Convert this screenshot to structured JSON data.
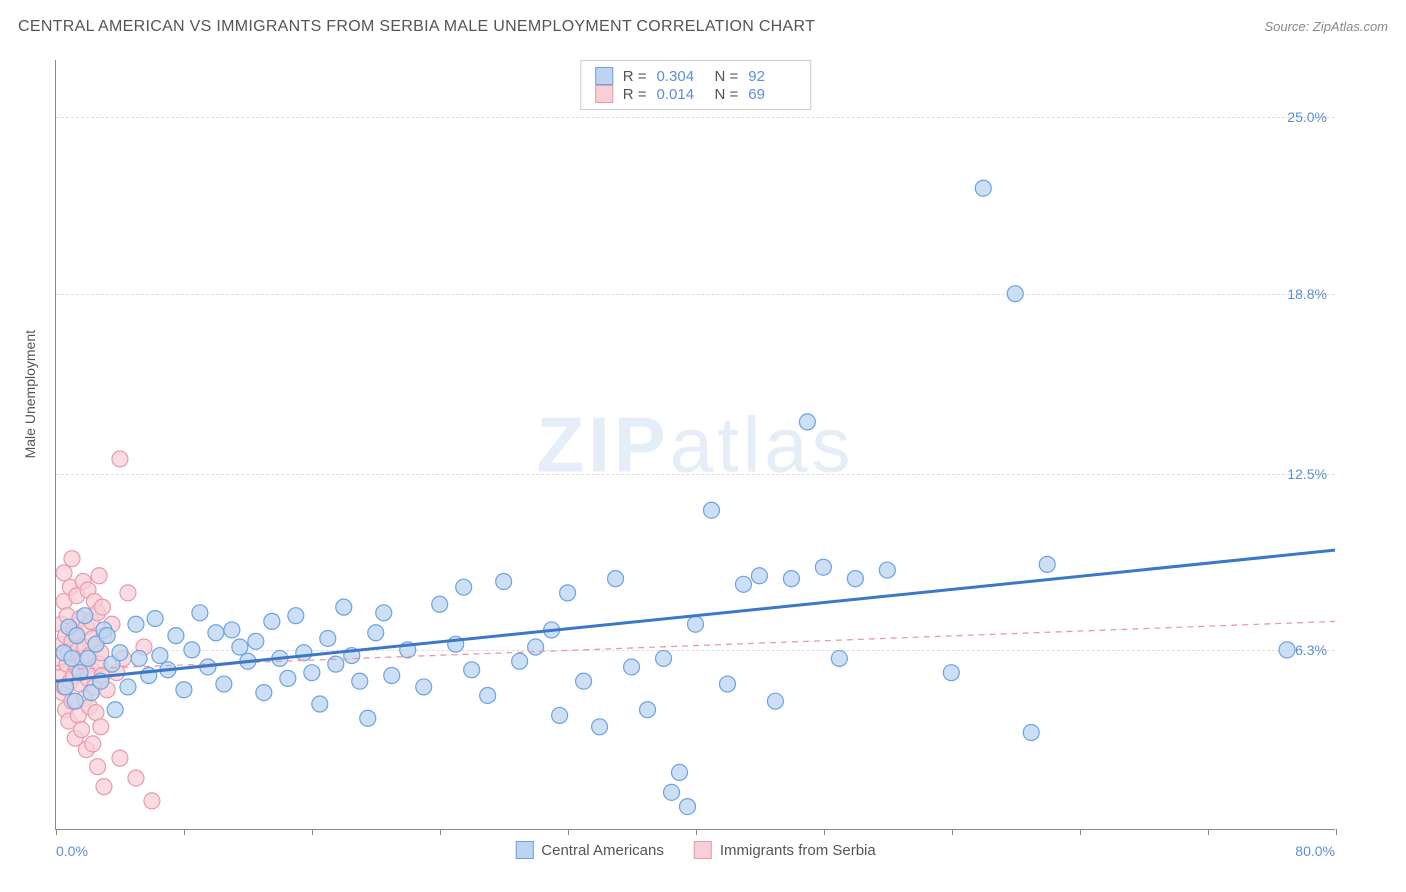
{
  "title": "CENTRAL AMERICAN VS IMMIGRANTS FROM SERBIA MALE UNEMPLOYMENT CORRELATION CHART",
  "source_label": "Source: ZipAtlas.com",
  "watermark": {
    "bold": "ZIP",
    "light": "atlas"
  },
  "ylabel": "Male Unemployment",
  "chart": {
    "type": "scatter",
    "xlim": [
      0,
      80
    ],
    "ylim": [
      0,
      27
    ],
    "xtick_label_min": "0.0%",
    "xtick_label_max": "80.0%",
    "xtick_positions": [
      0,
      8,
      16,
      24,
      32,
      40,
      48,
      56,
      64,
      72,
      80
    ],
    "ytick_labels": [
      "6.3%",
      "12.5%",
      "18.8%",
      "25.0%"
    ],
    "ytick_values": [
      6.3,
      12.5,
      18.8,
      25.0
    ],
    "grid_color": "#dddddd",
    "axis_color": "#888888",
    "background_color": "#ffffff",
    "marker_radius": 8,
    "marker_stroke_width": 1.2,
    "trend_line_width_solid": 3,
    "trend_line_width_dashed": 1.3,
    "series": [
      {
        "key": "central_americans",
        "label": "Central Americans",
        "R": "0.304",
        "N": "92",
        "fill": "#bcd4f0",
        "stroke": "#6ca3e0",
        "trend": {
          "style": "solid",
          "color": "#3b78c9",
          "y_at_xmin": 5.2,
          "y_at_xmax": 9.8
        },
        "points": [
          [
            0.5,
            6.2
          ],
          [
            0.6,
            5.0
          ],
          [
            0.8,
            7.1
          ],
          [
            1.0,
            6.0
          ],
          [
            1.2,
            4.5
          ],
          [
            1.3,
            6.8
          ],
          [
            1.5,
            5.5
          ],
          [
            1.8,
            7.5
          ],
          [
            2.0,
            6.0
          ],
          [
            2.2,
            4.8
          ],
          [
            2.5,
            6.5
          ],
          [
            2.8,
            5.2
          ],
          [
            3.0,
            7.0
          ],
          [
            3.2,
            6.8
          ],
          [
            3.5,
            5.8
          ],
          [
            3.7,
            4.2
          ],
          [
            4.0,
            6.2
          ],
          [
            4.5,
            5.0
          ],
          [
            5.0,
            7.2
          ],
          [
            5.2,
            6.0
          ],
          [
            5.8,
            5.4
          ],
          [
            6.2,
            7.4
          ],
          [
            6.5,
            6.1
          ],
          [
            7.0,
            5.6
          ],
          [
            7.5,
            6.8
          ],
          [
            8.0,
            4.9
          ],
          [
            8.5,
            6.3
          ],
          [
            9.0,
            7.6
          ],
          [
            9.5,
            5.7
          ],
          [
            10.0,
            6.9
          ],
          [
            10.5,
            5.1
          ],
          [
            11.0,
            7.0
          ],
          [
            11.5,
            6.4
          ],
          [
            12.0,
            5.9
          ],
          [
            12.5,
            6.6
          ],
          [
            13.0,
            4.8
          ],
          [
            13.5,
            7.3
          ],
          [
            14.0,
            6.0
          ],
          [
            14.5,
            5.3
          ],
          [
            15.0,
            7.5
          ],
          [
            15.5,
            6.2
          ],
          [
            16.0,
            5.5
          ],
          [
            16.5,
            4.4
          ],
          [
            17.0,
            6.7
          ],
          [
            17.5,
            5.8
          ],
          [
            18.0,
            7.8
          ],
          [
            18.5,
            6.1
          ],
          [
            19.0,
            5.2
          ],
          [
            19.5,
            3.9
          ],
          [
            20.0,
            6.9
          ],
          [
            20.5,
            7.6
          ],
          [
            21.0,
            5.4
          ],
          [
            22.0,
            6.3
          ],
          [
            23.0,
            5.0
          ],
          [
            24.0,
            7.9
          ],
          [
            25.0,
            6.5
          ],
          [
            25.5,
            8.5
          ],
          [
            26.0,
            5.6
          ],
          [
            27.0,
            4.7
          ],
          [
            28.0,
            8.7
          ],
          [
            29.0,
            5.9
          ],
          [
            30.0,
            6.4
          ],
          [
            31.0,
            7.0
          ],
          [
            31.5,
            4.0
          ],
          [
            32.0,
            8.3
          ],
          [
            33.0,
            5.2
          ],
          [
            34.0,
            3.6
          ],
          [
            35.0,
            8.8
          ],
          [
            36.0,
            5.7
          ],
          [
            37.0,
            4.2
          ],
          [
            38.0,
            6.0
          ],
          [
            39.0,
            2.0
          ],
          [
            39.5,
            0.8
          ],
          [
            40.0,
            7.2
          ],
          [
            41.0,
            11.2
          ],
          [
            42.0,
            5.1
          ],
          [
            43.0,
            8.6
          ],
          [
            44.0,
            8.9
          ],
          [
            45.0,
            4.5
          ],
          [
            46.0,
            8.8
          ],
          [
            47.0,
            14.3
          ],
          [
            48.0,
            9.2
          ],
          [
            49.0,
            6.0
          ],
          [
            50.0,
            8.8
          ],
          [
            52.0,
            9.1
          ],
          [
            56.0,
            5.5
          ],
          [
            58.0,
            22.5
          ],
          [
            60.0,
            18.8
          ],
          [
            61.0,
            3.4
          ],
          [
            62.0,
            9.3
          ],
          [
            77.0,
            6.3
          ],
          [
            38.5,
            1.3
          ]
        ]
      },
      {
        "key": "immigrants_serbia",
        "label": "Immigrants from Serbia",
        "R": "0.014",
        "N": "69",
        "fill": "#f7cfd7",
        "stroke": "#e99aab",
        "trend": {
          "style": "dashed",
          "color": "#e99aab",
          "y_at_xmin": 5.6,
          "y_at_xmax": 7.3
        },
        "points": [
          [
            0.2,
            6.0
          ],
          [
            0.3,
            5.5
          ],
          [
            0.3,
            7.2
          ],
          [
            0.4,
            4.8
          ],
          [
            0.4,
            6.5
          ],
          [
            0.5,
            5.0
          ],
          [
            0.5,
            8.0
          ],
          [
            0.6,
            6.8
          ],
          [
            0.6,
            4.2
          ],
          [
            0.7,
            5.8
          ],
          [
            0.7,
            7.5
          ],
          [
            0.8,
            6.2
          ],
          [
            0.8,
            3.8
          ],
          [
            0.9,
            5.2
          ],
          [
            0.9,
            8.5
          ],
          [
            1.0,
            6.6
          ],
          [
            1.0,
            4.5
          ],
          [
            1.1,
            7.0
          ],
          [
            1.1,
            5.4
          ],
          [
            1.2,
            6.9
          ],
          [
            1.2,
            3.2
          ],
          [
            1.3,
            5.7
          ],
          [
            1.3,
            8.2
          ],
          [
            1.4,
            4.0
          ],
          [
            1.4,
            6.3
          ],
          [
            1.5,
            7.4
          ],
          [
            1.5,
            5.1
          ],
          [
            1.6,
            6.0
          ],
          [
            1.6,
            3.5
          ],
          [
            1.7,
            5.9
          ],
          [
            1.7,
            8.7
          ],
          [
            1.8,
            4.6
          ],
          [
            1.8,
            6.4
          ],
          [
            1.9,
            7.1
          ],
          [
            1.9,
            2.8
          ],
          [
            2.0,
            5.3
          ],
          [
            2.0,
            8.4
          ],
          [
            2.1,
            6.1
          ],
          [
            2.1,
            4.3
          ],
          [
            2.2,
            7.3
          ],
          [
            2.2,
            5.6
          ],
          [
            2.3,
            6.7
          ],
          [
            2.3,
            3.0
          ],
          [
            2.4,
            5.0
          ],
          [
            2.4,
            8.0
          ],
          [
            2.5,
            6.5
          ],
          [
            2.5,
            4.1
          ],
          [
            2.6,
            7.6
          ],
          [
            2.6,
            2.2
          ],
          [
            2.7,
            5.8
          ],
          [
            2.7,
            8.9
          ],
          [
            2.8,
            6.2
          ],
          [
            2.8,
            3.6
          ],
          [
            2.9,
            5.4
          ],
          [
            2.9,
            7.8
          ],
          [
            3.0,
            6.8
          ],
          [
            3.0,
            1.5
          ],
          [
            3.2,
            4.9
          ],
          [
            3.5,
            7.2
          ],
          [
            3.8,
            5.5
          ],
          [
            4.0,
            2.5
          ],
          [
            4.2,
            6.0
          ],
          [
            4.5,
            8.3
          ],
          [
            5.0,
            1.8
          ],
          [
            5.5,
            6.4
          ],
          [
            6.0,
            1.0
          ],
          [
            4.0,
            13.0
          ],
          [
            1.0,
            9.5
          ],
          [
            0.5,
            9.0
          ]
        ]
      }
    ]
  },
  "legend_box": {
    "r_label": "R =",
    "n_label": "N ="
  },
  "colors": {
    "tick_label": "#5b8fd6",
    "text": "#555555"
  }
}
